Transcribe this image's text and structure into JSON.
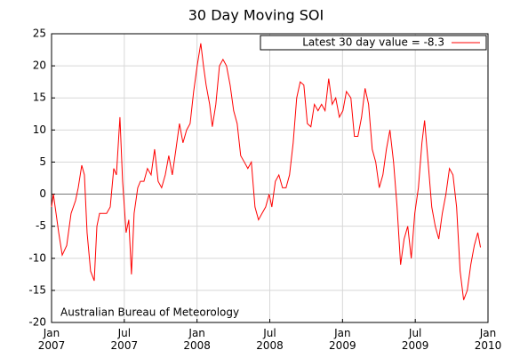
{
  "chart_data": {
    "type": "line",
    "title": "30 Day Moving SOI",
    "annotation": "Australian Bureau of Meteorology",
    "legend": "top-right",
    "grid": true,
    "xlim": [
      0,
      36
    ],
    "xticks": [
      {
        "value": 0,
        "label": "Jan\n2007"
      },
      {
        "value": 6,
        "label": "Jul\n2007"
      },
      {
        "value": 12,
        "label": "Jan\n2008"
      },
      {
        "value": 18,
        "label": "Jul\n2008"
      },
      {
        "value": 24,
        "label": "Jan\n2009"
      },
      {
        "value": 30,
        "label": "Jul\n2009"
      },
      {
        "value": 36,
        "label": "Jan\n2010"
      }
    ],
    "ylim": [
      -20,
      25
    ],
    "yticks": [
      -20,
      -15,
      -10,
      -5,
      0,
      5,
      10,
      15,
      20,
      25
    ],
    "x": [
      0,
      0.15,
      0.37,
      0.59,
      0.88,
      1.25,
      1.61,
      1.98,
      2.2,
      2.49,
      2.71,
      2.93,
      3.22,
      3.52,
      3.74,
      3.96,
      4.25,
      4.54,
      4.84,
      5.13,
      5.35,
      5.64,
      5.86,
      6.15,
      6.37,
      6.59,
      6.81,
      7.11,
      7.33,
      7.62,
      7.91,
      8.21,
      8.5,
      8.79,
      9.08,
      9.38,
      9.67,
      9.96,
      10.26,
      10.55,
      10.84,
      11.14,
      11.43,
      11.72,
      12.01,
      12.31,
      12.53,
      12.75,
      13.04,
      13.26,
      13.55,
      13.85,
      14.14,
      14.43,
      14.73,
      15.02,
      15.31,
      15.6,
      15.9,
      16.19,
      16.48,
      16.78,
      17.07,
      17.36,
      17.66,
      17.95,
      18.17,
      18.46,
      18.75,
      19.05,
      19.34,
      19.63,
      19.93,
      20.22,
      20.51,
      20.81,
      21.1,
      21.39,
      21.68,
      21.98,
      22.27,
      22.56,
      22.86,
      23.15,
      23.44,
      23.74,
      24.03,
      24.32,
      24.69,
      24.98,
      25.27,
      25.57,
      25.86,
      26.15,
      26.45,
      26.74,
      27.03,
      27.33,
      27.62,
      27.91,
      28.21,
      28.5,
      28.79,
      29.08,
      29.38,
      29.67,
      29.96,
      30.26,
      30.55,
      30.77,
      31.06,
      31.36,
      31.65,
      31.94,
      32.23,
      32.53,
      32.82,
      33.11,
      33.41,
      33.7,
      33.99,
      34.29,
      34.58,
      34.87,
      35.16,
      35.38
    ],
    "series": [
      {
        "name": "Latest 30 day value = -8.3",
        "color": "#ff0000",
        "values": [
          -2,
          0,
          -3,
          -6,
          -9.5,
          -8,
          -3,
          -1,
          1,
          4.5,
          3,
          -6,
          -12,
          -13.5,
          -5,
          -3,
          -3,
          -3,
          -2,
          4,
          3,
          12,
          2,
          -6,
          -4,
          -12.5,
          -3,
          1,
          2,
          2,
          4,
          3,
          7,
          2,
          1,
          3,
          6,
          3,
          7,
          11,
          8,
          10,
          11,
          16,
          20,
          23.5,
          20,
          17,
          14,
          10.5,
          14,
          20,
          21,
          20,
          17,
          13,
          11,
          6,
          5,
          4,
          5,
          -2,
          -4,
          -3,
          -2,
          0,
          -2,
          2,
          3,
          1,
          1,
          3,
          8,
          15,
          17.5,
          17,
          11,
          10.5,
          14,
          13,
          14,
          13,
          18,
          14,
          15,
          12,
          13,
          16,
          15,
          9,
          9,
          12,
          16.5,
          14,
          7,
          5,
          1,
          3,
          7,
          10,
          5,
          -2,
          -11,
          -7,
          -5,
          -10,
          -3,
          1,
          8,
          11.5,
          5,
          -2,
          -5,
          -7,
          -3,
          0,
          4,
          3,
          -2,
          -12,
          -16.5,
          -15,
          -11,
          -8,
          -6,
          -8.3
        ]
      }
    ]
  }
}
